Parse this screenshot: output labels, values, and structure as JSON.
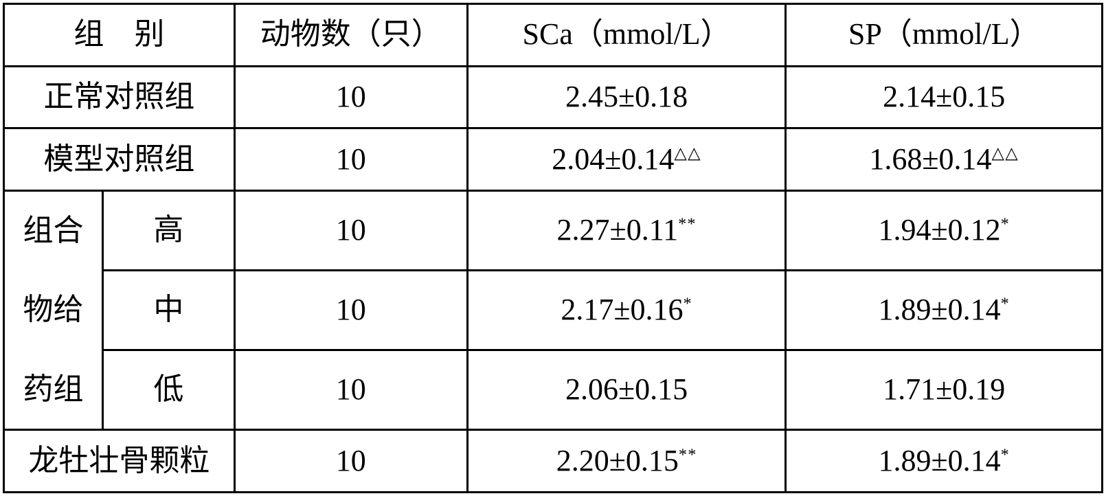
{
  "header": {
    "group": "组　别",
    "n": "动物数（只）",
    "sca": "SCa（mmol/L）",
    "sp": "SP（mmol/L）"
  },
  "rows": {
    "normal": {
      "label": "正常对照组",
      "n": "10",
      "sca": "2.45±0.18",
      "sca_sup": "",
      "sp": "2.14±0.15",
      "sp_sup": ""
    },
    "model": {
      "label": "模型对照组",
      "n": "10",
      "sca": "2.04±0.14",
      "sca_sup": "△△",
      "sp": "1.68±0.14",
      "sp_sup": "△△"
    },
    "compound_label_l1": "组合",
    "compound_label_l2": "物给",
    "compound_label_l3": "药组",
    "high": {
      "label": "高",
      "n": "10",
      "sca": "2.27±0.11",
      "sca_sup": "**",
      "sp": "1.94±0.12",
      "sp_sup": "*"
    },
    "mid": {
      "label": "中",
      "n": "10",
      "sca": "2.17±0.16",
      "sca_sup": "*",
      "sp": "1.89±0.14",
      "sp_sup": "*"
    },
    "low": {
      "label": "低",
      "n": "10",
      "sca": "2.06±0.15",
      "sca_sup": "",
      "sp": "1.71±0.19",
      "sp_sup": ""
    },
    "longmu": {
      "label": "龙牡壮骨颗粒",
      "n": "10",
      "sca": "2.20±0.15",
      "sca_sup": "**",
      "sp": "1.89±0.14",
      "sp_sup": "*"
    }
  },
  "style": {
    "font_family": "SimSun",
    "font_size_pt": 33,
    "border_color": "#000000",
    "background_color": "#ffffff",
    "text_color": "#000000",
    "col_widths_pct": [
      9.0,
      12.0,
      21.2,
      29.0,
      28.8
    ],
    "row_count": 7,
    "sup_triangle_color": "#000000",
    "sup_star_color": "#000000"
  }
}
